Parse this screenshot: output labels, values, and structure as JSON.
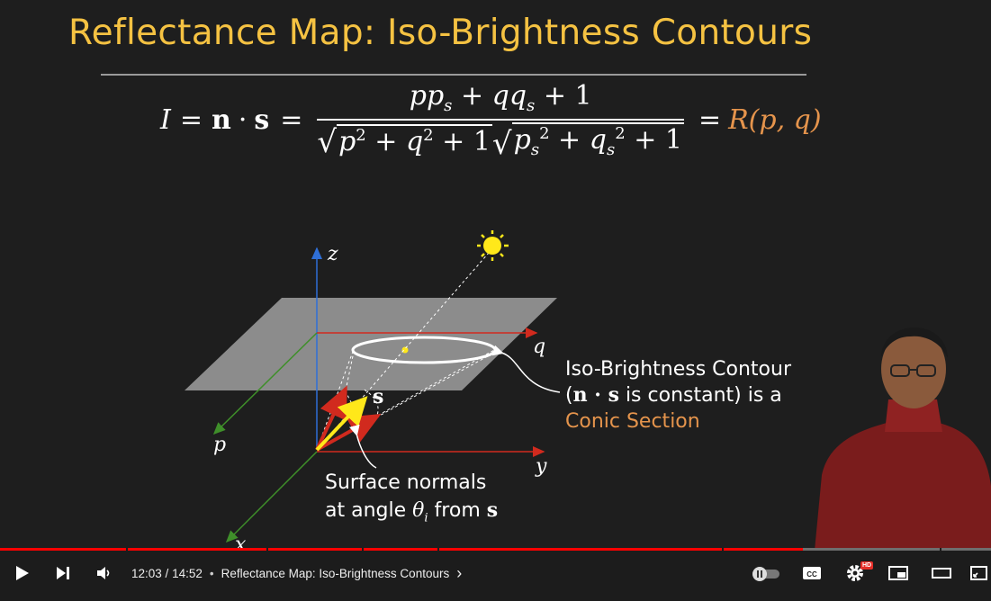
{
  "slide": {
    "title": "Reflectance Map: Iso-Brightness Contours",
    "formula": {
      "lhs_I": "I",
      "eq": "=",
      "n": "n",
      "dot": "·",
      "s": "s",
      "numerator": "pp_s + qq_s + 1",
      "denominator": "√(p² + q² + 1) √(p_s² + q_s² + 1)",
      "rhs": "R(p, q)"
    },
    "axes": {
      "z": "z",
      "q": "q",
      "p": "p",
      "y": "y",
      "x": "x"
    },
    "source_vector_label": "s",
    "iso_label": {
      "line1": "Iso-Brightness Contour",
      "line2_pre": "(",
      "line2_math": "n · s",
      "line2_post": " is constant) is a",
      "line3": "Conic Section"
    },
    "normals_label": {
      "line1": "Surface normals",
      "line2_pre": "at angle ",
      "theta": "θ",
      "theta_sub": "i",
      "line2_mid": " from ",
      "line2_s": "s"
    },
    "colors": {
      "title": "#f5c242",
      "accent_orange": "#e5944c",
      "plane": "#8c8c8c",
      "axis_red": "#d12a1e",
      "axis_blue": "#2f6fd6",
      "axis_green": "#3f8f2a",
      "sun": "#ffe81a"
    }
  },
  "player": {
    "time_current": "12:03",
    "time_sep": " / ",
    "time_total": "14:52",
    "chapter_dot": "•",
    "chapter_title": "Reflectance Map: Iso-Brightness Contours",
    "chapter_arrow": "›",
    "hd_badge": "HD",
    "progress_fraction": 0.81,
    "icons": [
      "play-icon",
      "next-icon",
      "volume-icon",
      "autoplay-toggle-icon",
      "captions-icon",
      "settings-icon",
      "miniplayer-icon",
      "theater-icon",
      "fullscreen-icon"
    ],
    "colors": {
      "progress": "#ff0000",
      "track": "#6e6e6e"
    }
  }
}
